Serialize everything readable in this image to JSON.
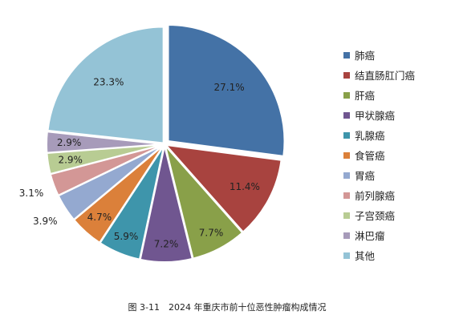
{
  "chart_data": {
    "type": "pie",
    "title": "",
    "caption": "图 3-11　2024 年重庆市前十位恶性肿瘤构成情况",
    "legend_position": "right",
    "slices": [
      {
        "name": "肺癌",
        "value": 27.1,
        "label": "27.1%",
        "color": "#4472A6"
      },
      {
        "name": "结直肠肛门癌",
        "value": 11.4,
        "label": "11.4%",
        "color": "#A8433F"
      },
      {
        "name": "肝癌",
        "value": 7.7,
        "label": "7.7%",
        "color": "#89A049"
      },
      {
        "name": "甲状腺癌",
        "value": 7.2,
        "label": "7.2%",
        "color": "#705690"
      },
      {
        "name": "乳腺癌",
        "value": 5.9,
        "label": "5.9%",
        "color": "#3E95AB"
      },
      {
        "name": "食管癌",
        "value": 4.7,
        "label": "4.7%",
        "color": "#DB803A"
      },
      {
        "name": "胃癌",
        "value": 3.9,
        "label": "3.9%",
        "color": "#94A9D0"
      },
      {
        "name": "前列腺癌",
        "value": 3.1,
        "label": "3.1%",
        "color": "#D39796"
      },
      {
        "name": "子宫颈癌",
        "value": 2.9,
        "label": "2.9%",
        "color": "#B8CC93"
      },
      {
        "name": "淋巴瘤",
        "value": 2.9,
        "label": "2.9%",
        "color": "#A79BBA"
      },
      {
        "name": "其他",
        "value": 23.3,
        "label": "23.3%",
        "color": "#94C3D6"
      }
    ]
  }
}
